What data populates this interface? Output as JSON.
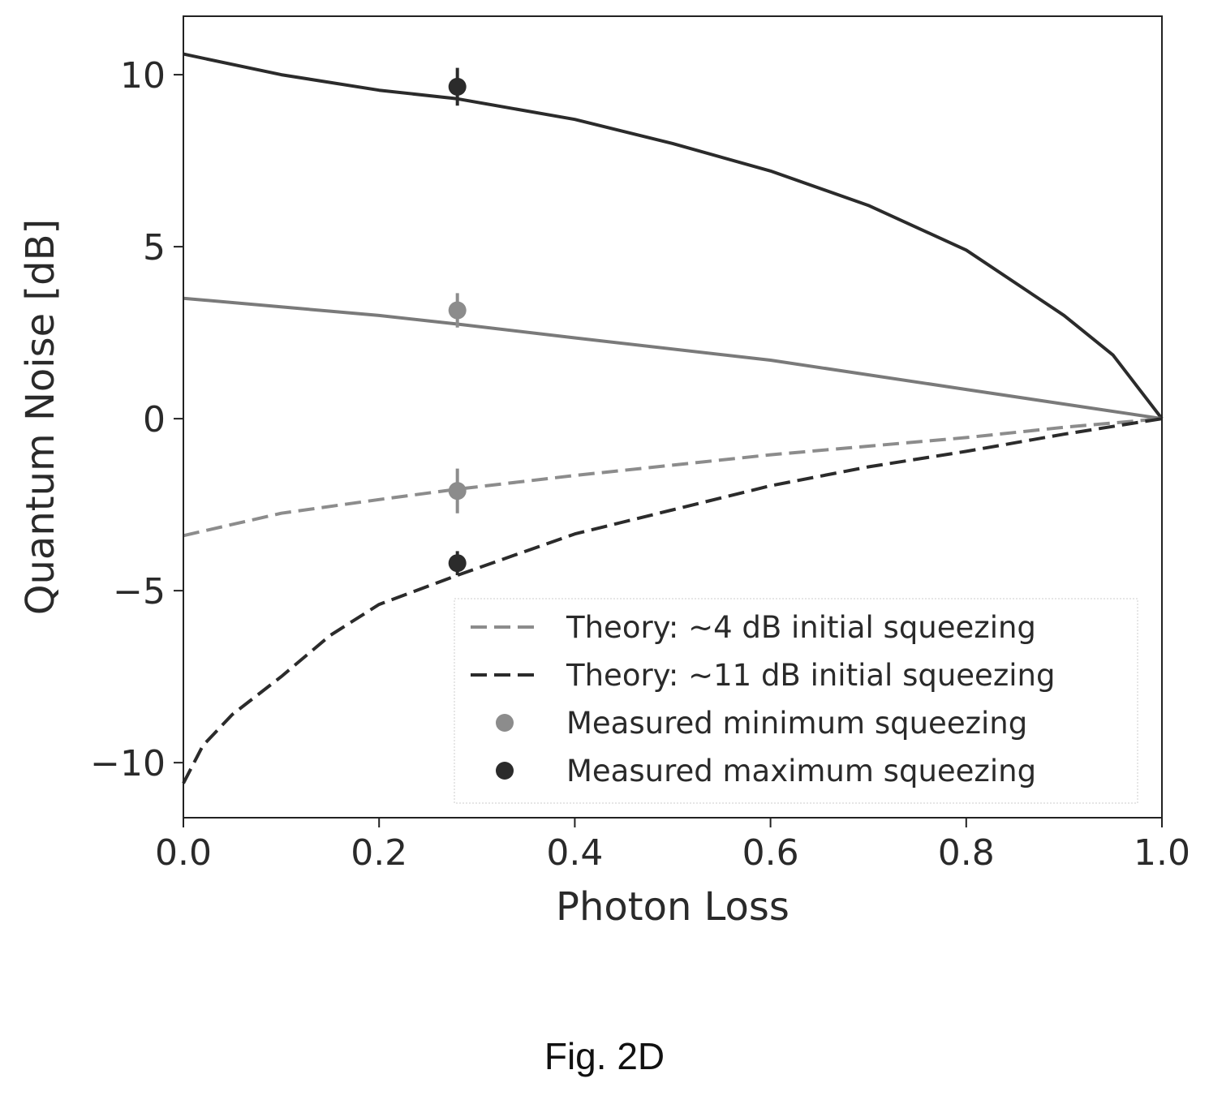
{
  "figure_caption": "Fig. 2D",
  "chart_data": {
    "type": "line",
    "xlabel": "Photon Loss",
    "ylabel": "Quantum Noise [dB]",
    "xlim": [
      0.0,
      1.0
    ],
    "ylim": [
      -11.6,
      11.7
    ],
    "xticks": [
      0.0,
      0.2,
      0.4,
      0.6,
      0.8,
      1.0
    ],
    "xtick_labels": [
      "0.0",
      "0.2",
      "0.4",
      "0.6",
      "0.8",
      "1.0"
    ],
    "yticks": [
      10,
      5,
      0,
      -5,
      -10
    ],
    "ytick_labels": [
      "10",
      "5",
      "0",
      "−5",
      "−10"
    ],
    "grid": false,
    "legend_position": "lower-right",
    "series": [
      {
        "name": "",
        "role": "anti-squeezing-11dB",
        "style": "solid",
        "color": "#2b2b2b",
        "x": [
          0.0,
          0.1,
          0.2,
          0.28,
          0.4,
          0.5,
          0.6,
          0.7,
          0.8,
          0.9,
          0.95,
          1.0
        ],
        "y": [
          10.6,
          10.0,
          9.55,
          9.3,
          8.7,
          8.0,
          7.2,
          6.2,
          4.9,
          3.0,
          1.85,
          0.0
        ]
      },
      {
        "name": "",
        "role": "anti-squeezing-4dB",
        "style": "solid",
        "color": "#7a7a7a",
        "x": [
          0.0,
          0.2,
          0.28,
          0.4,
          0.6,
          0.8,
          1.0
        ],
        "y": [
          3.5,
          3.0,
          2.75,
          2.35,
          1.7,
          0.85,
          0.0
        ]
      },
      {
        "name": "Theory: ~4 dB initial squeezing",
        "style": "dashed",
        "color": "#8c8c8c",
        "x": [
          0.0,
          0.1,
          0.2,
          0.28,
          0.4,
          0.5,
          0.6,
          0.7,
          0.8,
          0.9,
          1.0
        ],
        "y": [
          -3.4,
          -2.75,
          -2.35,
          -2.05,
          -1.65,
          -1.35,
          -1.05,
          -0.8,
          -0.55,
          -0.25,
          0.0
        ]
      },
      {
        "name": "Theory: ~11 dB initial squeezing",
        "style": "dashed",
        "color": "#2b2b2b",
        "x": [
          0.0,
          0.02,
          0.05,
          0.1,
          0.15,
          0.2,
          0.28,
          0.4,
          0.5,
          0.6,
          0.7,
          0.8,
          0.9,
          1.0
        ],
        "y": [
          -10.6,
          -9.5,
          -8.6,
          -7.5,
          -6.3,
          -5.4,
          -4.55,
          -3.35,
          -2.65,
          -1.95,
          -1.4,
          -0.95,
          -0.45,
          0.0
        ]
      }
    ],
    "points": [
      {
        "name": "Measured minimum squeezing",
        "color": "#8c8c8c",
        "x": [
          0.28,
          0.28
        ],
        "y": [
          3.15,
          -2.1
        ],
        "yerr": [
          0.5,
          0.65
        ]
      },
      {
        "name": "Measured maximum squeezing",
        "color": "#2b2b2b",
        "x": [
          0.28,
          0.28
        ],
        "y": [
          9.65,
          -4.2
        ],
        "yerr": [
          0.55,
          0.35
        ]
      }
    ]
  }
}
